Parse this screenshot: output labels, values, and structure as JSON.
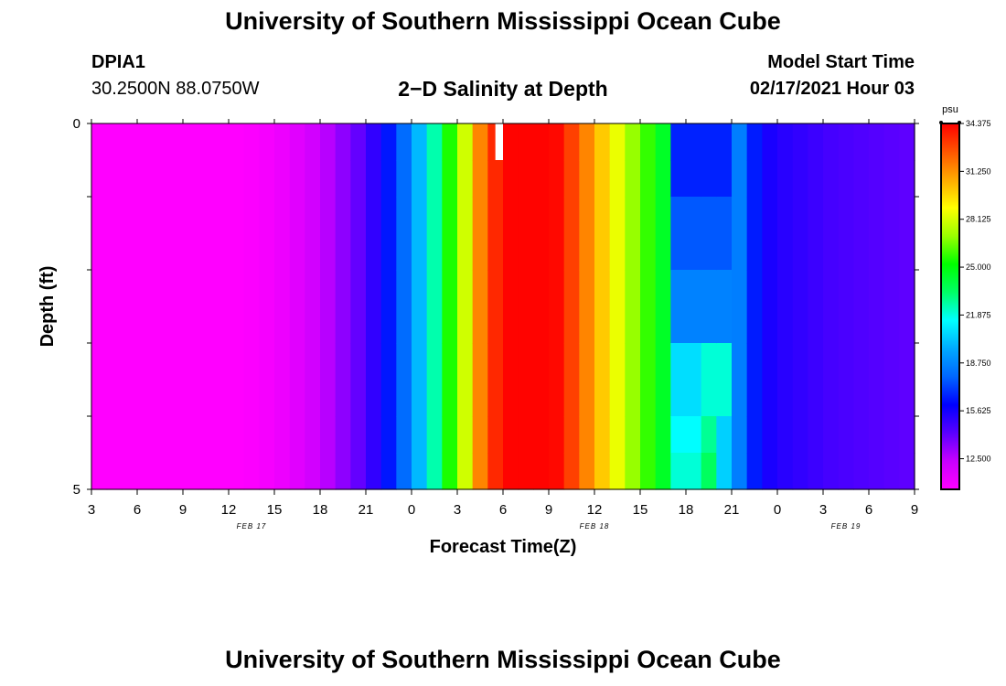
{
  "header": {
    "title": "University of Southern Mississippi Ocean Cube",
    "station_id": "DPIA1",
    "location": "30.2500N 88.0750W",
    "plot_title": "2−D Salinity at Depth",
    "model_start_label": "Model Start Time",
    "model_start_value": "02/17/2021 Hour 03"
  },
  "footer": {
    "title": "University of Southern Mississippi Ocean Cube"
  },
  "chart_data": {
    "type": "heatmap",
    "title": "2−D Salinity at Depth",
    "xlabel": "Forecast Time(Z)",
    "ylabel": "Depth (ft)",
    "x_unit": "hours since 02/17/2021 03Z",
    "x_range": [
      0,
      54
    ],
    "y_range": [
      0,
      5
    ],
    "x_ticks": [
      {
        "h": 0,
        "label": "3"
      },
      {
        "h": 3,
        "label": "6"
      },
      {
        "h": 6,
        "label": "9"
      },
      {
        "h": 9,
        "label": "12"
      },
      {
        "h": 12,
        "label": "15"
      },
      {
        "h": 15,
        "label": "18"
      },
      {
        "h": 18,
        "label": "21"
      },
      {
        "h": 21,
        "label": "0"
      },
      {
        "h": 24,
        "label": "3"
      },
      {
        "h": 27,
        "label": "6"
      },
      {
        "h": 30,
        "label": "9"
      },
      {
        "h": 33,
        "label": "12"
      },
      {
        "h": 36,
        "label": "15"
      },
      {
        "h": 39,
        "label": "18"
      },
      {
        "h": 42,
        "label": "21"
      },
      {
        "h": 45,
        "label": "0"
      },
      {
        "h": 48,
        "label": "3"
      },
      {
        "h": 51,
        "label": "6"
      },
      {
        "h": 54,
        "label": "9"
      }
    ],
    "date_labels": [
      {
        "h": 10.5,
        "label": "FEB 17"
      },
      {
        "h": 33,
        "label": "FEB 18"
      },
      {
        "h": 49.5,
        "label": "FEB 19"
      }
    ],
    "y_ticks": [
      {
        "v": 0,
        "label": "0"
      },
      {
        "v": 5,
        "label": "5"
      }
    ],
    "colorbar": {
      "unit": "psu",
      "min": 10.5,
      "max": 34.375,
      "ticks": [
        34.375,
        31.25,
        28.125,
        25.0,
        21.875,
        18.75,
        15.625,
        12.5
      ],
      "tick_labels": [
        "34.375",
        "31.250",
        "28.125",
        "25.000",
        "21.875",
        "18.750",
        "15.625",
        "12.500"
      ],
      "colors": [
        "#ff00ff",
        "#c800ff",
        "#5a00ff",
        "#0000ff",
        "#0066ff",
        "#00aaff",
        "#00ffff",
        "#00ff66",
        "#00ff00",
        "#99ff00",
        "#ffff00",
        "#ffaa00",
        "#ff5500",
        "#ff0000"
      ]
    },
    "layers": [
      0,
      0.5,
      1,
      2,
      3,
      4,
      4.5,
      5
    ],
    "hourly_salinity": [
      10.5,
      10.5,
      10.5,
      10.5,
      10.5,
      10.5,
      10.5,
      10.5,
      10.5,
      10.5,
      10.6,
      10.8,
      11.1,
      11.5,
      12.0,
      12.6,
      13.3,
      14.0,
      15.0,
      16.4,
      18.0,
      20.0,
      22.5,
      25.5,
      28.0,
      31.5,
      33.5,
      34.3,
      34.3,
      34.3,
      34.2,
      33.0,
      31.5,
      30.0,
      28.5,
      27.0,
      25.8,
      24.5,
      23.5,
      22.5,
      21.5,
      20.5,
      18.5,
      16.5,
      15.5,
      15.2,
      15.0,
      14.8,
      14.6,
      14.5,
      14.4,
      14.3,
      14.2,
      14.1,
      14.0
    ],
    "layer_overrides": [
      {
        "h0": 38,
        "h1": 42,
        "layer": 0,
        "value": 16.6
      },
      {
        "h0": 38,
        "h1": 42,
        "layer": 1,
        "value": 16.6
      },
      {
        "h0": 38,
        "h1": 42,
        "layer": 2,
        "value": 17.6
      },
      {
        "h0": 38,
        "h1": 42,
        "layer": 3,
        "value": 18.6
      },
      {
        "h0": 38,
        "h1": 40,
        "layer": 4,
        "value": 20.8
      },
      {
        "h0": 40,
        "h1": 42,
        "layer": 4,
        "value": 22.0
      },
      {
        "h0": 38,
        "h1": 40,
        "layer": 5,
        "value": 21.5
      },
      {
        "h0": 40,
        "h1": 41,
        "layer": 5,
        "value": 22.8
      },
      {
        "h0": 38,
        "h1": 40,
        "layer": 6,
        "value": 22.0
      },
      {
        "h0": 40,
        "h1": 41,
        "layer": 6,
        "value": 23.5
      }
    ],
    "gap": {
      "h0": 26.5,
      "h1": 27,
      "v0": 0,
      "v1": 0.5
    }
  }
}
